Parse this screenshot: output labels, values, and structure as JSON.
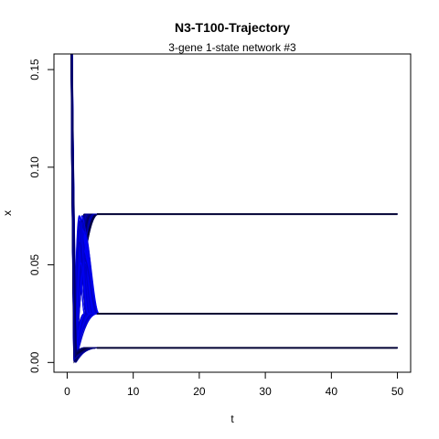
{
  "chart_data": {
    "type": "line",
    "title": "N3-T100-Trajectory",
    "subtitle": "3-gene 1-state network #3",
    "xlabel": "t",
    "ylabel": "x",
    "xlim": [
      -2,
      52
    ],
    "ylim": [
      -0.005,
      0.158
    ],
    "x_ticks": [
      0,
      10,
      20,
      30,
      40,
      50
    ],
    "x_tick_labels": [
      "0",
      "10",
      "20",
      "30",
      "40",
      "50"
    ],
    "y_ticks": [
      0.0,
      0.05,
      0.1,
      0.15
    ],
    "y_tick_labels": [
      "0.00",
      "0.05",
      "0.10",
      "0.15"
    ],
    "grid": false,
    "legend": "none",
    "colors": {
      "dark": "#000033",
      "mid": "#00008b",
      "bright": "#0000ff"
    },
    "series_groups": [
      {
        "steady_state": 0.076,
        "trajectory_count": 100
      },
      {
        "steady_state": 0.025,
        "trajectory_count": 100
      },
      {
        "steady_state": 0.0075,
        "trajectory_count": 100
      }
    ],
    "t_range": [
      0,
      50
    ]
  }
}
